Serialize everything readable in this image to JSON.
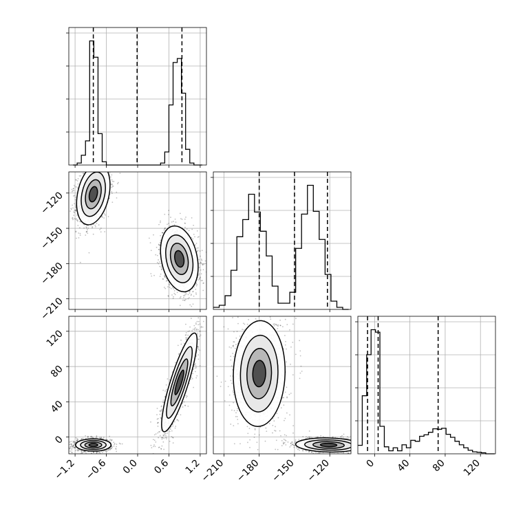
{
  "figure": {
    "type": "corner-plot"
  },
  "chart_data": {
    "type": "corner",
    "parameters": [
      {
        "ticks": [
          -1.2,
          -0.6,
          0.0,
          0.6,
          1.2
        ],
        "tick_labels": [
          "−1.2",
          "−0.6",
          "0.0",
          "0.6",
          "1.2"
        ],
        "range": [
          -1.32,
          1.32
        ]
      },
      {
        "ticks": [
          -210,
          -180,
          -150,
          -120
        ],
        "tick_labels": [
          "−210",
          "−180",
          "−150",
          "−120"
        ],
        "range": [
          -219,
          -102
        ]
      },
      {
        "ticks": [
          0,
          40,
          80,
          120
        ],
        "tick_labels": [
          "0",
          "40",
          "80",
          "120"
        ],
        "range": [
          -19,
          137
        ]
      }
    ],
    "quantile_lines": [
      [
        -0.85,
        -0.01,
        0.85
      ],
      [
        -180,
        -150,
        -122
      ],
      [
        -8,
        4,
        72
      ]
    ],
    "histograms": [
      {
        "bins": [
          -1.24,
          -1.16,
          -1.08,
          -1.0,
          -0.92,
          -0.84,
          -0.76,
          -0.68,
          -0.6,
          -0.52,
          -0.44,
          -0.36,
          -0.28,
          -0.2,
          -0.12,
          -0.04,
          0.04,
          0.12,
          0.2,
          0.28,
          0.36,
          0.44,
          0.52,
          0.6,
          0.68,
          0.76,
          0.84,
          0.92,
          1.0,
          1.08,
          1.16,
          1.24
        ],
        "counts": [
          0,
          3,
          15,
          37,
          190,
          165,
          48,
          5,
          0,
          0,
          0,
          0,
          0,
          0,
          0,
          0,
          0,
          0,
          0,
          0,
          0,
          3,
          20,
          92,
          157,
          163,
          110,
          24,
          3,
          0,
          0
        ]
      },
      {
        "bins": [
          -219,
          -214,
          -209,
          -204,
          -199,
          -194,
          -189,
          -184,
          -179,
          -174,
          -169,
          -164,
          -159,
          -154,
          -149,
          -144,
          -139,
          -134,
          -129,
          -124,
          -119,
          -114,
          -109,
          -104
        ],
        "counts": [
          3,
          6,
          20,
          57,
          106,
          131,
          168,
          142,
          114,
          78,
          34,
          9,
          9,
          25,
          89,
          139,
          181,
          143,
          102,
          51,
          12,
          3,
          0
        ]
      },
      {
        "bins": [
          -19,
          -14,
          -9,
          -4,
          1,
          6,
          11,
          16,
          21,
          26,
          31,
          36,
          41,
          46,
          51,
          56,
          61,
          66,
          71,
          76,
          81,
          86,
          91,
          96,
          101,
          106,
          111,
          116,
          121,
          126,
          131,
          136
        ],
        "counts": [
          17,
          116,
          198,
          248,
          243,
          55,
          14,
          6,
          12,
          6,
          18,
          12,
          27,
          25,
          35,
          38,
          43,
          50,
          49,
          51,
          39,
          33,
          25,
          18,
          12,
          7,
          4,
          3,
          2,
          0,
          0
        ]
      }
    ],
    "pairs": [
      {
        "x_param": 0,
        "y_param": 1,
        "clusters": [
          {
            "cx": -0.85,
            "cy": -121,
            "sx": 0.16,
            "sy": 13,
            "rho": 0.3
          },
          {
            "cx": 0.8,
            "cy": -176,
            "sx": 0.18,
            "sy": 14,
            "rho": -0.25
          }
        ]
      },
      {
        "x_param": 0,
        "y_param": 2,
        "clusters": [
          {
            "cx": -0.85,
            "cy": -9,
            "sx": 0.17,
            "sy": 3.5,
            "rho": 0.0
          },
          {
            "cx": 0.8,
            "cy": 62,
            "sx": 0.17,
            "sy": 28,
            "rho": 0.85
          }
        ]
      },
      {
        "x_param": 1,
        "y_param": 2,
        "clusters": [
          {
            "cx": -180,
            "cy": 72,
            "sx": 11,
            "sy": 30,
            "rho": 0.05
          },
          {
            "cx": -121,
            "cy": -9,
            "sx": 14,
            "sy": 4,
            "rho": -0.1
          }
        ]
      }
    ]
  }
}
